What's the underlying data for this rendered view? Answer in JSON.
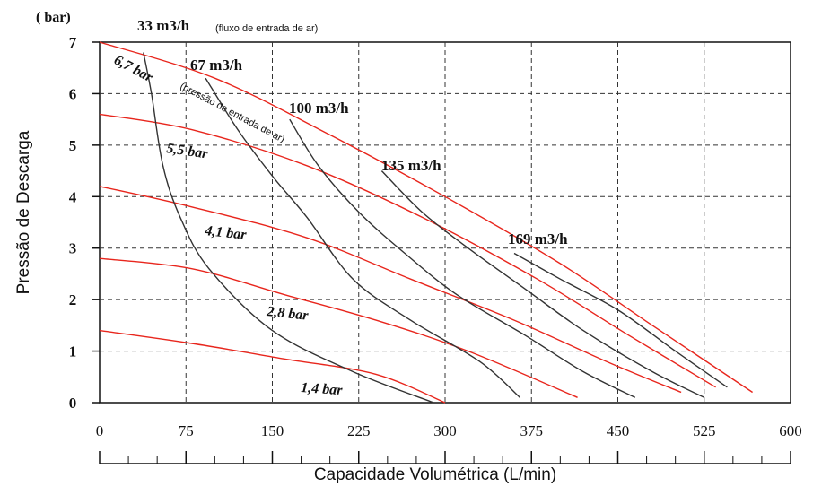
{
  "chart_data": {
    "type": "line",
    "unit_label": "( bar)",
    "xlabel": "Capacidade Volumétrica (L/min)",
    "ylabel": "Pressão de Descarga",
    "xlim": [
      0,
      600
    ],
    "ylim": [
      0,
      7
    ],
    "x_ticks": [
      "0",
      "75",
      "150",
      "225",
      "300",
      "375",
      "450",
      "525",
      "600"
    ],
    "y_ticks": [
      "0",
      "1",
      "2",
      "3",
      "4",
      "5",
      "6",
      "7"
    ],
    "grid": true,
    "air_flow_note": "(fluxo de entrada de ar)",
    "air_pressure_note": "(pressão de entrada de ar)",
    "air_pressure_curves": [
      {
        "label": "6,7 bar",
        "color": "#e8261d",
        "points": [
          [
            0,
            7.0
          ],
          [
            100,
            6.3
          ],
          [
            200,
            5.2
          ],
          [
            300,
            4.0
          ],
          [
            400,
            2.7
          ],
          [
            480,
            1.5
          ],
          [
            567,
            0.2
          ]
        ]
      },
      {
        "label": "5,5 bar",
        "color": "#e8261d",
        "points": [
          [
            0,
            5.6
          ],
          [
            80,
            5.3
          ],
          [
            180,
            4.6
          ],
          [
            280,
            3.6
          ],
          [
            380,
            2.4
          ],
          [
            460,
            1.3
          ],
          [
            535,
            0.3
          ]
        ]
      },
      {
        "label": "4,1 bar",
        "color": "#e8261d",
        "points": [
          [
            0,
            4.2
          ],
          [
            80,
            3.8
          ],
          [
            180,
            3.2
          ],
          [
            270,
            2.4
          ],
          [
            360,
            1.6
          ],
          [
            440,
            0.8
          ],
          [
            505,
            0.2
          ]
        ]
      },
      {
        "label": "2,8 bar",
        "color": "#e8261d",
        "points": [
          [
            0,
            2.8
          ],
          [
            80,
            2.6
          ],
          [
            160,
            2.1
          ],
          [
            240,
            1.6
          ],
          [
            320,
            1.0
          ],
          [
            415,
            0.1
          ]
        ]
      },
      {
        "label": "1,4 bar",
        "color": "#e8261d",
        "points": [
          [
            0,
            1.4
          ],
          [
            80,
            1.15
          ],
          [
            160,
            0.85
          ],
          [
            240,
            0.55
          ],
          [
            300,
            0.0
          ]
        ]
      }
    ],
    "air_flow_curves": [
      {
        "label": "33 m3/h",
        "color": "#333333",
        "points": [
          [
            38,
            6.8
          ],
          [
            45,
            6.0
          ],
          [
            55,
            4.6
          ],
          [
            70,
            3.6
          ],
          [
            95,
            2.6
          ],
          [
            150,
            1.4
          ],
          [
            220,
            0.6
          ],
          [
            290,
            0.0
          ]
        ]
      },
      {
        "label": "67 m3/h",
        "color": "#333333",
        "points": [
          [
            92,
            6.3
          ],
          [
            120,
            5.3
          ],
          [
            150,
            4.4
          ],
          [
            180,
            3.6
          ],
          [
            220,
            2.4
          ],
          [
            270,
            1.6
          ],
          [
            330,
            0.8
          ],
          [
            365,
            0.1
          ]
        ]
      },
      {
        "label": "100 m3/h",
        "color": "#333333",
        "points": [
          [
            165,
            5.5
          ],
          [
            190,
            4.6
          ],
          [
            225,
            3.7
          ],
          [
            265,
            2.9
          ],
          [
            310,
            2.1
          ],
          [
            370,
            1.3
          ],
          [
            420,
            0.6
          ],
          [
            465,
            0.1
          ]
        ]
      },
      {
        "label": "135 m3/h",
        "color": "#333333",
        "points": [
          [
            245,
            4.5
          ],
          [
            280,
            3.7
          ],
          [
            320,
            3.0
          ],
          [
            370,
            2.2
          ],
          [
            420,
            1.4
          ],
          [
            480,
            0.6
          ],
          [
            525,
            0.1
          ]
        ]
      },
      {
        "label": "169 m3/h",
        "color": "#333333",
        "points": [
          [
            360,
            2.9
          ],
          [
            400,
            2.4
          ],
          [
            450,
            1.8
          ],
          [
            500,
            1.0
          ],
          [
            545,
            0.3
          ]
        ]
      }
    ]
  }
}
